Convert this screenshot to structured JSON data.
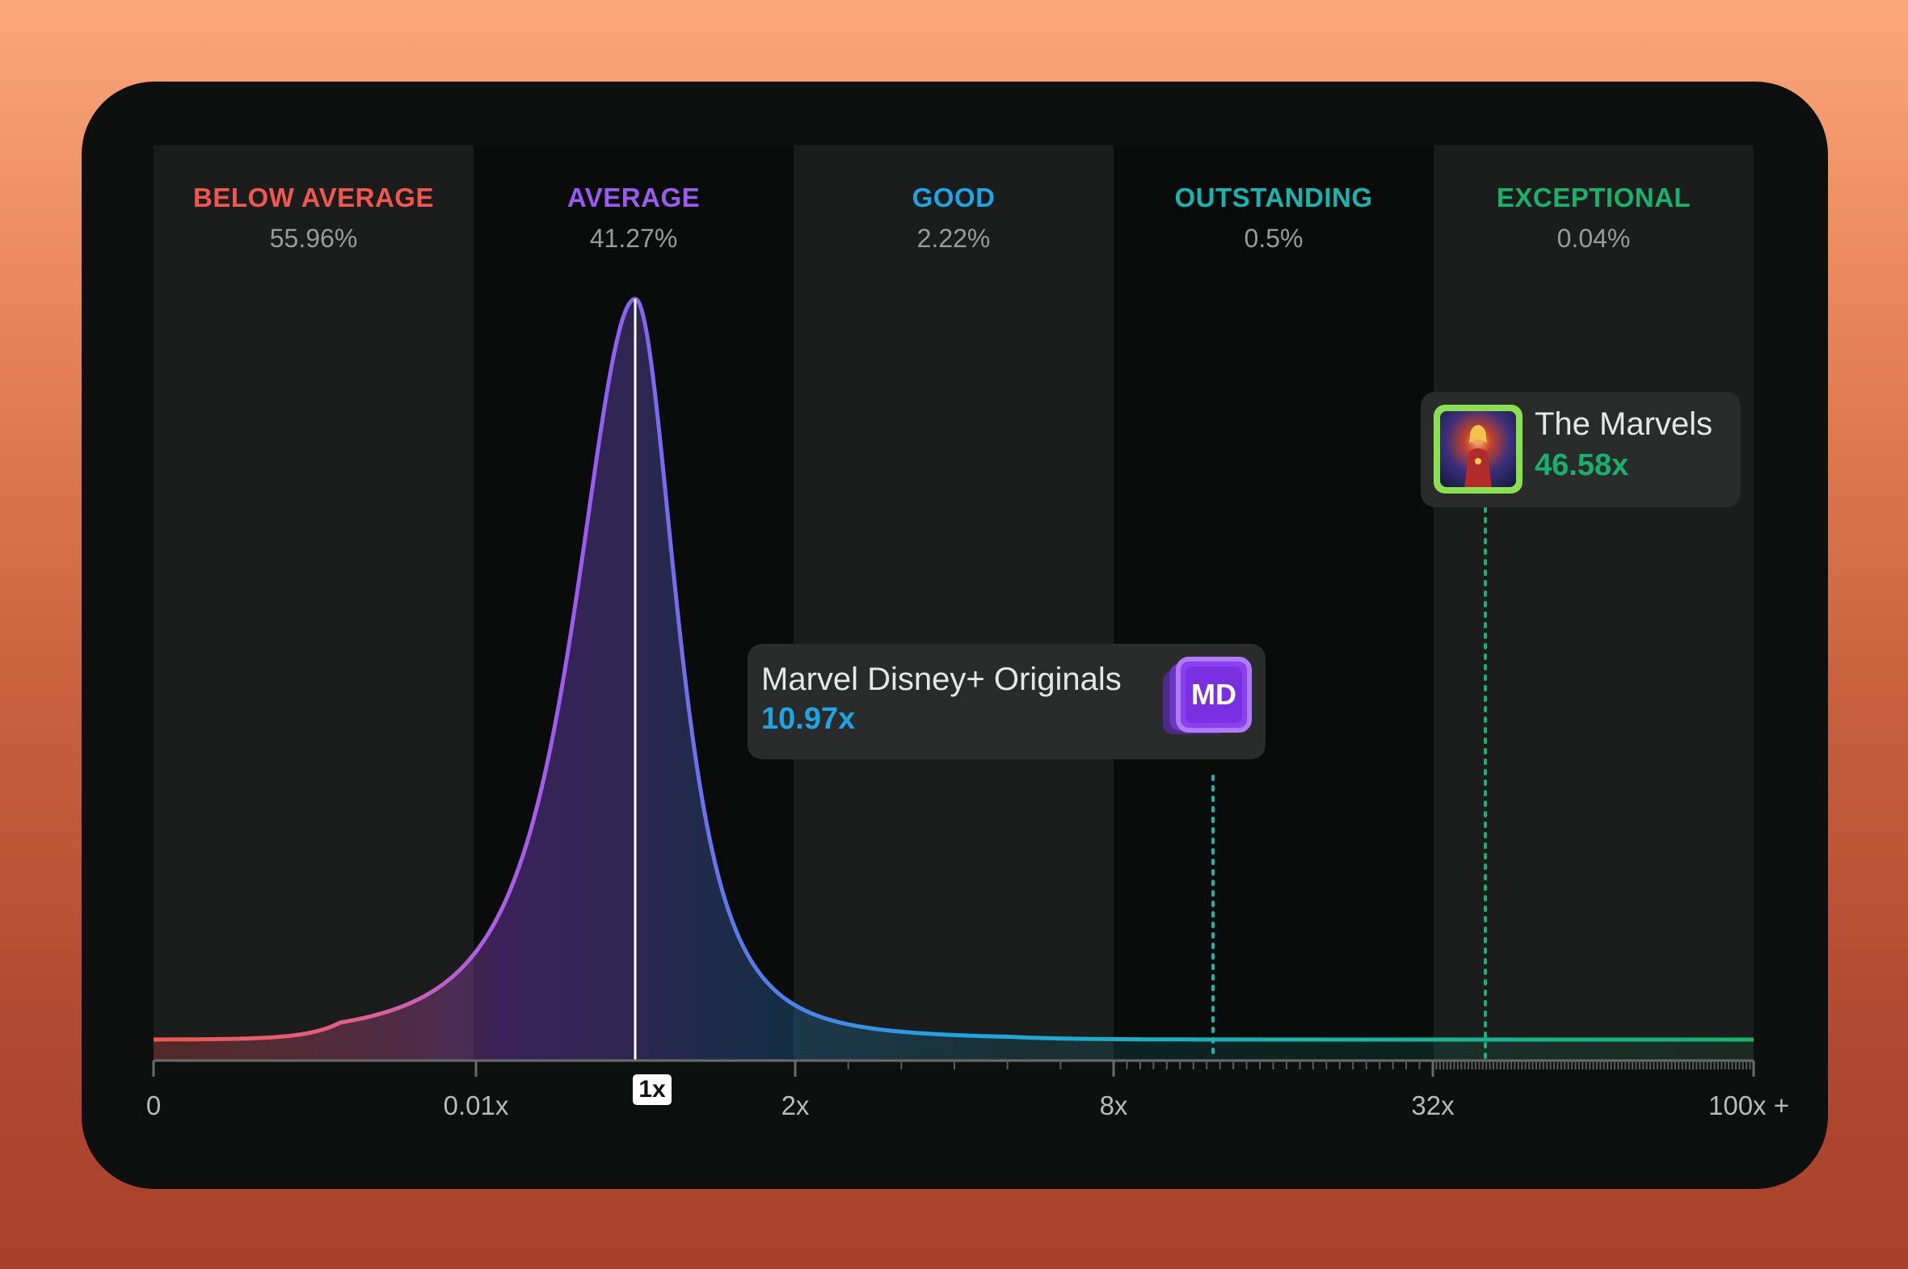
{
  "bands": [
    {
      "label": "BELOW AVERAGE",
      "percent": "55.96%",
      "color": "#f0574d"
    },
    {
      "label": "AVERAGE",
      "percent": "41.27%",
      "color": "#9a5cf0"
    },
    {
      "label": "GOOD",
      "percent": "2.22%",
      "color": "#1fa4e6"
    },
    {
      "label": "OUTSTANDING",
      "percent": "0.5%",
      "color": "#17b5b0"
    },
    {
      "label": "EXCEPTIONAL",
      "percent": "0.04%",
      "color": "#17b26b"
    }
  ],
  "axis": {
    "ticks": [
      "0",
      "0.01x",
      "2x",
      "8x",
      "32x",
      "100x +"
    ],
    "marker": "1x"
  },
  "markers": [
    {
      "name": "Marvel Disney+ Originals",
      "value": "10.97x",
      "value_color": "#1fa4e6",
      "icon_text": "MD",
      "icon": "stacked-md-icon"
    },
    {
      "name": "The Marvels",
      "value": "46.58x",
      "value_color": "#17b26b",
      "icon": "movie-poster-thumbnail"
    }
  ],
  "chart_data": {
    "type": "area",
    "title": "",
    "xlabel": "",
    "ylabel": "",
    "x_ticks": [
      "0",
      "0.01x",
      "2x",
      "8x",
      "32x",
      "100x +"
    ],
    "peak_at": "1x",
    "categories": [
      "BELOW AVERAGE",
      "AVERAGE",
      "GOOD",
      "OUTSTANDING",
      "EXCEPTIONAL"
    ],
    "values": [
      55.96,
      41.27,
      2.22,
      0.5,
      0.04
    ],
    "annotations": [
      {
        "label": "Marvel Disney+ Originals",
        "x": 10.97
      },
      {
        "label": "The Marvels",
        "x": 46.58
      }
    ]
  }
}
